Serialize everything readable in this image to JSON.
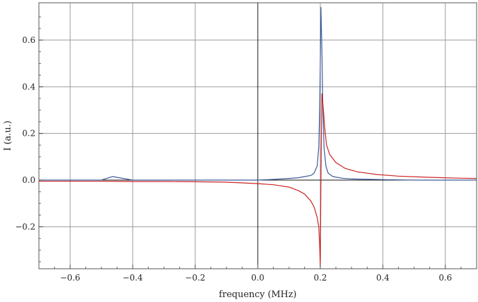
{
  "chart_data": {
    "type": "line",
    "title": "",
    "xlabel": "frequency (MHz)",
    "ylabel": "I (a.u.)",
    "xlim": [
      -0.7,
      0.7
    ],
    "ylim": [
      -0.38,
      0.76
    ],
    "x_ticks": [
      -0.6,
      -0.4,
      -0.2,
      0.0,
      0.2,
      0.4,
      0.6
    ],
    "x_tick_labels": [
      "−0.6",
      "−0.4",
      "−0.2",
      "0.0",
      "0.2",
      "0.4",
      "0.6"
    ],
    "y_ticks": [
      -0.2,
      0.0,
      0.2,
      0.4,
      0.6
    ],
    "y_tick_labels": [
      "−0.2",
      "0.0",
      "0.2",
      "0.4",
      "0.6"
    ],
    "grid": true,
    "legend": "none",
    "series": [
      {
        "color": "#3a5a99",
        "points": [
          [
            -0.7,
            0.0
          ],
          [
            -0.6,
            0.0
          ],
          [
            -0.5,
            0.0
          ],
          [
            -0.465,
            0.015
          ],
          [
            -0.4,
            0.0
          ],
          [
            -0.3,
            0.0
          ],
          [
            -0.2,
            0.0
          ],
          [
            -0.1,
            0.0
          ],
          [
            0.0,
            0.0
          ],
          [
            0.05,
            0.003
          ],
          [
            0.1,
            0.007
          ],
          [
            0.13,
            0.01
          ],
          [
            0.15,
            0.015
          ],
          [
            0.17,
            0.02
          ],
          [
            0.18,
            0.03
          ],
          [
            0.19,
            0.06
          ],
          [
            0.195,
            0.14
          ],
          [
            0.198,
            0.3
          ],
          [
            0.2,
            0.5
          ],
          [
            0.202,
            0.74
          ],
          [
            0.205,
            0.56
          ],
          [
            0.208,
            0.32
          ],
          [
            0.212,
            0.14
          ],
          [
            0.218,
            0.06
          ],
          [
            0.225,
            0.03
          ],
          [
            0.24,
            0.015
          ],
          [
            0.27,
            0.008
          ],
          [
            0.3,
            0.005
          ],
          [
            0.4,
            0.002
          ],
          [
            0.5,
            0.0
          ],
          [
            0.6,
            0.0
          ],
          [
            0.7,
            0.0
          ]
        ]
      },
      {
        "color": "#cc2222",
        "points": [
          [
            -0.7,
            -0.005
          ],
          [
            -0.6,
            -0.005
          ],
          [
            -0.5,
            -0.005
          ],
          [
            -0.4,
            -0.006
          ],
          [
            -0.3,
            -0.006
          ],
          [
            -0.2,
            -0.007
          ],
          [
            -0.1,
            -0.009
          ],
          [
            -0.05,
            -0.012
          ],
          [
            0.0,
            -0.015
          ],
          [
            0.05,
            -0.02
          ],
          [
            0.1,
            -0.03
          ],
          [
            0.13,
            -0.045
          ],
          [
            0.15,
            -0.06
          ],
          [
            0.17,
            -0.09
          ],
          [
            0.18,
            -0.115
          ],
          [
            0.19,
            -0.16
          ],
          [
            0.195,
            -0.2
          ],
          [
            0.198,
            -0.28
          ],
          [
            0.2,
            -0.37
          ],
          [
            0.202,
            0.0
          ],
          [
            0.205,
            0.37
          ],
          [
            0.21,
            0.3
          ],
          [
            0.215,
            0.21
          ],
          [
            0.22,
            0.15
          ],
          [
            0.23,
            0.11
          ],
          [
            0.25,
            0.075
          ],
          [
            0.28,
            0.05
          ],
          [
            0.32,
            0.035
          ],
          [
            0.38,
            0.024
          ],
          [
            0.45,
            0.017
          ],
          [
            0.55,
            0.012
          ],
          [
            0.65,
            0.008
          ],
          [
            0.7,
            0.007
          ]
        ]
      }
    ]
  }
}
